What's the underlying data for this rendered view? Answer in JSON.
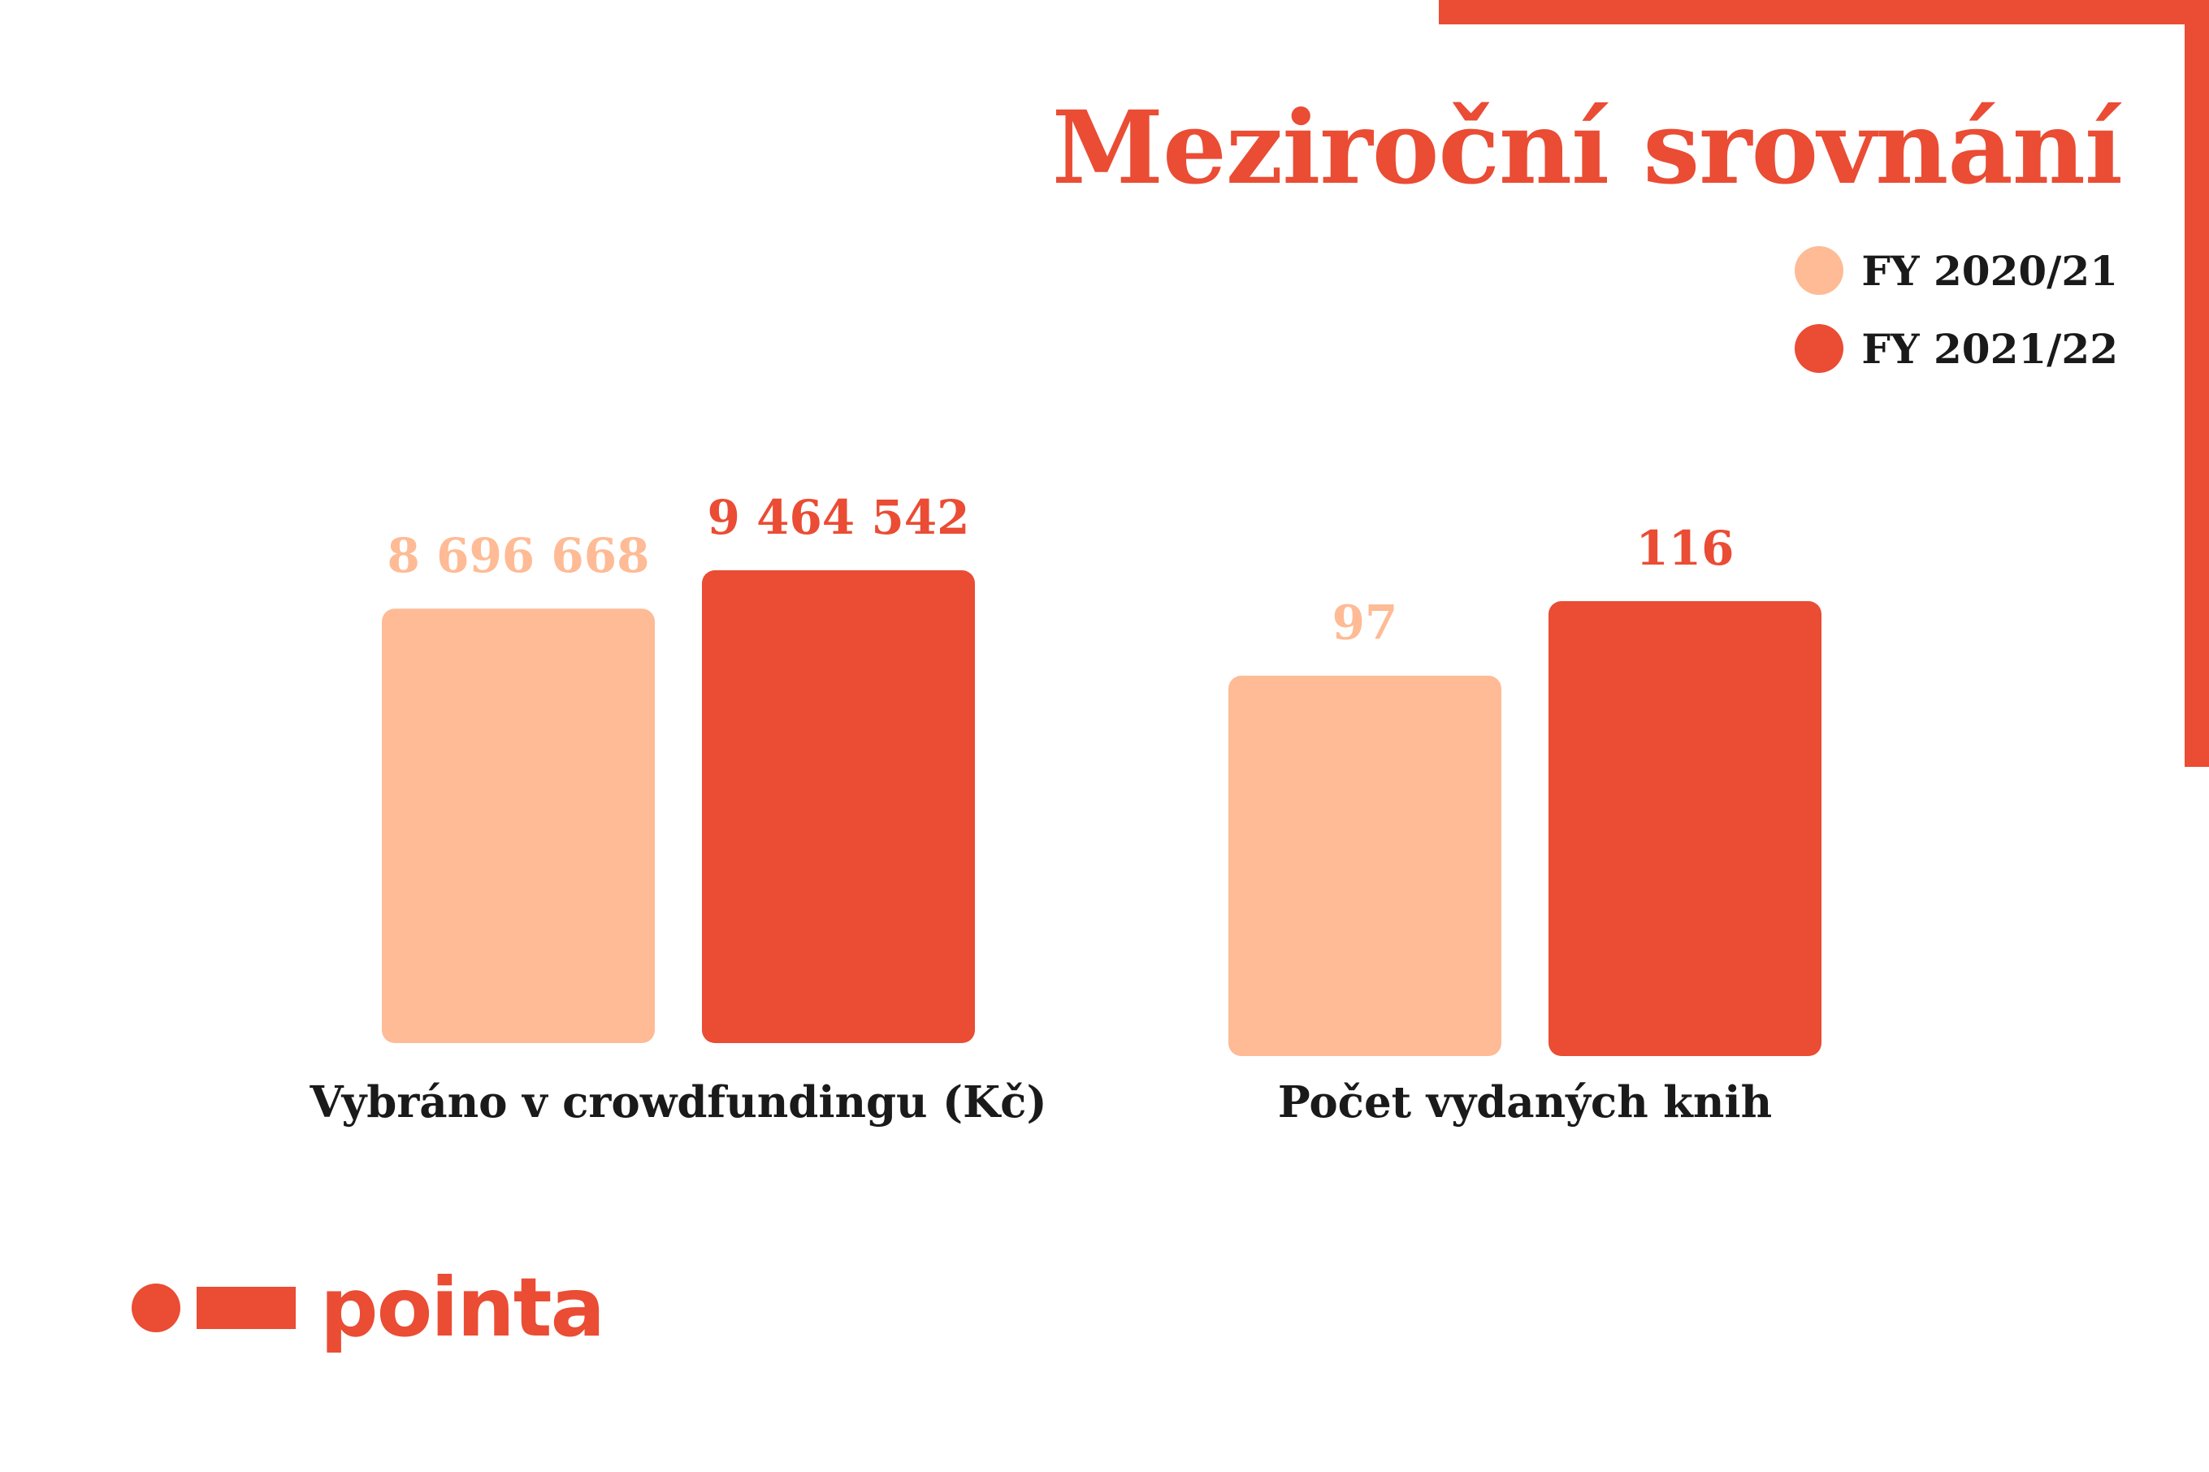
{
  "title": "Meziroční srovnání",
  "colors": {
    "accent": "#ea4c34",
    "light": "#febb95"
  },
  "legend": [
    {
      "label": "FY 2020/21",
      "color": "#febb95"
    },
    {
      "label": "FY 2021/22",
      "color": "#ea4c34"
    }
  ],
  "logo": {
    "text": "pointa"
  },
  "chart_data": {
    "type": "bar",
    "title": "Meziroční srovnání",
    "legend_placement": "top-right",
    "grid": false,
    "groups": [
      {
        "category": "Vybráno v crowdfundingu (Kč)",
        "series": [
          {
            "name": "FY 2020/21",
            "value": 8696668,
            "label": "8 696 668"
          },
          {
            "name": "FY 2021/22",
            "value": 9464542,
            "label": "9 464 542"
          }
        ]
      },
      {
        "category": "Počet vydaných knih",
        "series": [
          {
            "name": "FY 2020/21",
            "value": 97,
            "label": "97"
          },
          {
            "name": "FY 2021/22",
            "value": 116,
            "label": "116"
          }
        ]
      }
    ]
  }
}
